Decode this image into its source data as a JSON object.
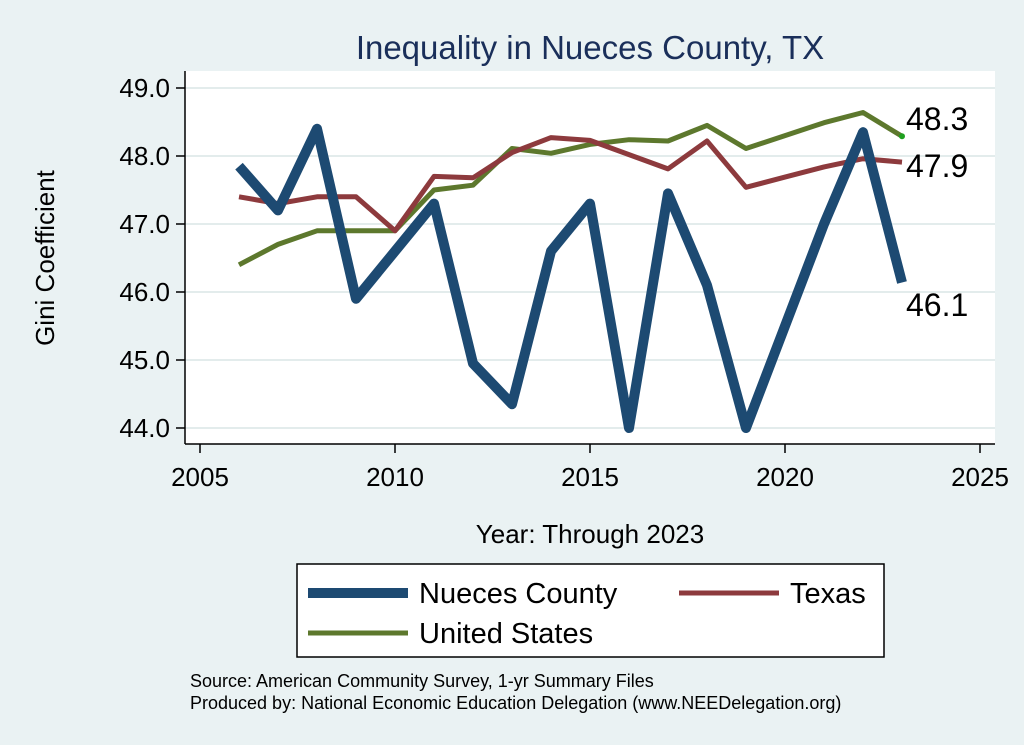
{
  "chart_data": {
    "type": "line",
    "title": "Inequality in Nueces County, TX",
    "xlabel": "Year: Through 2023",
    "ylabel": "Gini Coefficient",
    "xlim": [
      2005,
      2025
    ],
    "ylim": [
      44.0,
      49.0
    ],
    "xticks": [
      2005,
      2010,
      2015,
      2020,
      2025
    ],
    "yticks": [
      44.0,
      45.0,
      46.0,
      47.0,
      48.0,
      49.0
    ],
    "ytick_labels": [
      "44.0",
      "45.0",
      "46.0",
      "47.0",
      "48.0",
      "49.0"
    ],
    "grid": true,
    "series": [
      {
        "name": "Nueces County",
        "color": "#1d4a72",
        "x": [
          2006,
          2007,
          2008,
          2009,
          2010,
          2011,
          2012,
          2013,
          2014,
          2015,
          2016,
          2017,
          2018,
          2019,
          2020,
          2021,
          2022,
          2023
        ],
        "values": [
          47.85,
          47.2,
          48.4,
          45.9,
          46.6,
          47.3,
          44.95,
          44.35,
          46.6,
          47.3,
          44.0,
          47.45,
          46.1,
          44.0,
          45.5,
          47.0,
          48.35,
          46.14
        ],
        "end_label": "46.1"
      },
      {
        "name": "Texas",
        "color": "#8d3a3d",
        "x": [
          2006,
          2007,
          2008,
          2009,
          2010,
          2011,
          2012,
          2013,
          2014,
          2015,
          2016,
          2017,
          2018,
          2019,
          2020,
          2021,
          2022,
          2023
        ],
        "values": [
          47.4,
          47.3,
          47.4,
          47.4,
          46.9,
          47.7,
          47.68,
          48.05,
          48.27,
          48.23,
          48.02,
          47.81,
          48.22,
          47.54,
          47.69,
          47.84,
          47.96,
          47.91
        ],
        "end_label": "47.9"
      },
      {
        "name": "United States",
        "color": "#5d782d",
        "x": [
          2006,
          2007,
          2008,
          2009,
          2010,
          2011,
          2012,
          2013,
          2014,
          2015,
          2016,
          2017,
          2018,
          2019,
          2020,
          2021,
          2022,
          2023
        ],
        "values": [
          46.4,
          46.7,
          46.9,
          46.9,
          46.9,
          47.5,
          47.57,
          48.11,
          48.04,
          48.17,
          48.24,
          48.22,
          48.45,
          48.11,
          48.3,
          48.49,
          48.64,
          48.29
        ],
        "end_label": "48.3"
      }
    ],
    "legend": {
      "placement": "bottom",
      "entries": [
        "Nueces County",
        "Texas",
        "United States"
      ]
    },
    "source_lines": [
      "Source: American Community Survey, 1-yr Summary Files",
      "Produced by: National Economic Education Delegation (www.NEEDelegation.org)"
    ]
  }
}
